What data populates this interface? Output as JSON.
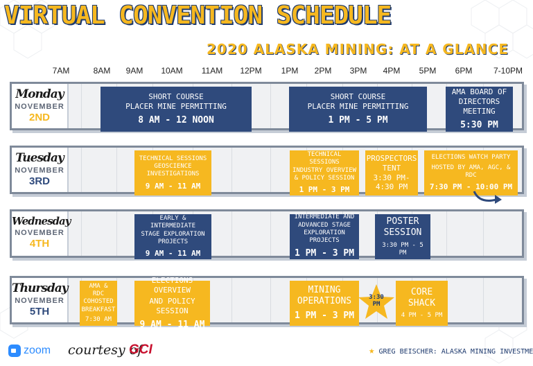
{
  "title": "VIRTUAL CONVENTION SCHEDULE",
  "subtitle": "2020 ALASKA MINING: AT A GLANCE",
  "times": [
    "7AM",
    "8AM",
    "9AM",
    "10AM",
    "11AM",
    "12PM",
    "1PM",
    "2PM",
    "3PM",
    "4PM",
    "5PM",
    "6PM",
    "7-10PM"
  ],
  "colors": {
    "navy": "#2f4a7c",
    "gold": "#f6b820",
    "frame": "#7f8a9a"
  },
  "days": [
    {
      "name": "Monday",
      "month": "NOVEMBER",
      "date": "2ND"
    },
    {
      "name": "Tuesday",
      "month": "NOVEMBER",
      "date": "3RD"
    },
    {
      "name": "Wednesday",
      "month": "NOVEMBER",
      "date": "4TH"
    },
    {
      "name": "Thursday",
      "month": "NOVEMBER",
      "date": "5TH"
    }
  ],
  "events": {
    "mon1": {
      "line1": "SHORT COURSE",
      "line2": "PLACER MINE PERMITTING",
      "time": "8 AM - 12 NOON"
    },
    "mon2": {
      "line1": "SHORT COURSE",
      "line2": "PLACER MINE PERMITTING",
      "time": "1 PM - 5 PM"
    },
    "mon3": {
      "line1": "AMA BOARD OF",
      "line2": "DIRECTORS MEETING",
      "time": "5:30 PM"
    },
    "tue1": {
      "line1": "TECHNICAL SESSIONS",
      "line2": "GEOSCIENCE",
      "line3": "INVESTIGATIONS",
      "time": "9 AM - 11 AM"
    },
    "tue2": {
      "line1": "TECHNICAL SESSIONS",
      "line2": "INDUSTRY OVERVIEW",
      "line3": "& POLICY SESSION",
      "time": "1 PM - 3 PM"
    },
    "tue3": {
      "line1": "PROSPECTORS",
      "line2": "TENT",
      "time": "3:30 PM-",
      "time2": "4:30 PM"
    },
    "tue4": {
      "line1": "ELECTIONS WATCH PARTY",
      "line2": "HOSTED BY AMA, AGC, & RDC",
      "time": "7:30 PM - 10:00 PM"
    },
    "wed1": {
      "line1": "EARLY & INTERMEDIATE",
      "line2": "STAGE EXPLORATION",
      "line3": "PROJECTS",
      "time": "9 AM - 11 AM"
    },
    "wed2": {
      "line1": "INTERMEDIATE AND",
      "line2": "ADVANCED STAGE",
      "line3": "EXPLORATION PROJECTS",
      "time": "1 PM - 3 PM"
    },
    "wed3": {
      "line1": "POSTER",
      "line2": "SESSION",
      "time": "3:30 PM - 5 PM"
    },
    "thu1": {
      "line1": "AMA & RDC",
      "line2": "COHOSTED",
      "line3": "BREAKFAST",
      "time": "7:30 AM"
    },
    "thu2": {
      "line1": "ELECTIONS OVERVIEW",
      "line2": "AND POLICY SESSION",
      "time": "9 AM - 11 AM"
    },
    "thu3": {
      "line1": "MINING",
      "line2": "OPERATIONS",
      "time": "1 PM - 3 PM"
    },
    "thu4": {
      "line1": "3:30",
      "line2": "PM"
    },
    "thu5": {
      "line1": "CORE",
      "line2": "SHACK",
      "time": "4 PM - 5 PM"
    }
  },
  "footer": {
    "zoom": "zoom",
    "courtesy": "courtesy of",
    "sponsor": "GCI",
    "note": "GREG BEISCHER: ALASKA MINING INVESTMENT"
  }
}
